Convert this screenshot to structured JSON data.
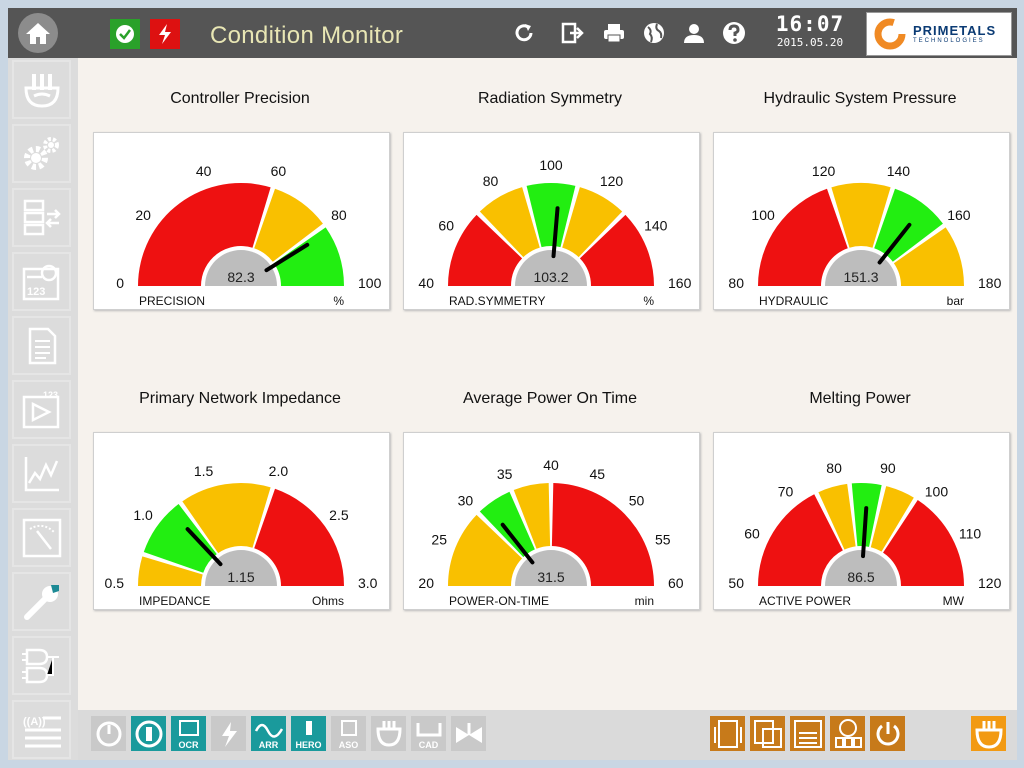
{
  "app": {
    "title": "Condition Monitor"
  },
  "clock": {
    "time": "16:07",
    "date": "2015.05.20"
  },
  "brand": {
    "name": "PRIMETALS",
    "sub": "TECHNOLOGIES"
  },
  "topbar_icons": [
    "refresh-icon",
    "logout-icon",
    "print-icon",
    "globe-icon",
    "user-icon",
    "help-icon"
  ],
  "sidebar": {
    "items": [
      {
        "icon": "furnace-icon",
        "color": "#6fa22e"
      },
      {
        "icon": "gears-icon",
        "color": "#c8761f"
      },
      {
        "icon": "transfer-list-icon",
        "color": "#2b73a8"
      },
      {
        "icon": "counter-123-icon",
        "color": "#7a5c2e"
      },
      {
        "icon": "document-icon",
        "color": "#1b9a77"
      },
      {
        "icon": "play-123-icon",
        "color": "#88a82a"
      },
      {
        "icon": "trend-chart-icon",
        "color": "#8b1e80"
      },
      {
        "icon": "meter-icon",
        "color": "#6b2e8c"
      },
      {
        "icon": "wrench-icon",
        "color": "#1d8a95"
      },
      {
        "icon": "logic-gates-icon",
        "color": "#9a1e1e"
      },
      {
        "icon": "alarm-list-icon",
        "color": "#8a2a12"
      }
    ]
  },
  "gauges": [
    {
      "title": "Controller Precision",
      "label": "PRECISION",
      "unit": "%",
      "min": 0,
      "max": 100,
      "value": 82.3,
      "display": "82.3",
      "ticks": [
        "0",
        "20",
        "40",
        "60",
        "80",
        "100"
      ],
      "segments": [
        {
          "from": 0,
          "to": 60,
          "color": "red"
        },
        {
          "from": 60,
          "to": 80,
          "color": "yellow"
        },
        {
          "from": 80,
          "to": 100,
          "color": "green"
        }
      ]
    },
    {
      "title": "Radiation Symmetry",
      "label": "RAD.SYMMETRY",
      "unit": "%",
      "min": 40,
      "max": 160,
      "value": 103.2,
      "display": "103.2",
      "ticks": [
        "40",
        "60",
        "80",
        "100",
        "120",
        "140",
        "160"
      ],
      "segments": [
        {
          "from": 40,
          "to": 70,
          "color": "red"
        },
        {
          "from": 70,
          "to": 90,
          "color": "yellow"
        },
        {
          "from": 90,
          "to": 110,
          "color": "green"
        },
        {
          "from": 110,
          "to": 130,
          "color": "yellow"
        },
        {
          "from": 130,
          "to": 160,
          "color": "red"
        }
      ]
    },
    {
      "title": "Hydraulic System Pressure",
      "label": "HYDRAULIC",
      "unit": "bar",
      "min": 80,
      "max": 180,
      "value": 151.3,
      "display": "151.3",
      "ticks": [
        "80",
        "100",
        "120",
        "140",
        "160",
        "180"
      ],
      "segments": [
        {
          "from": 80,
          "to": 120,
          "color": "red"
        },
        {
          "from": 120,
          "to": 140,
          "color": "yellow"
        },
        {
          "from": 140,
          "to": 160,
          "color": "green"
        },
        {
          "from": 160,
          "to": 180,
          "color": "yellow"
        }
      ]
    },
    {
      "title": "Primary Network Impedance",
      "label": "IMPEDANCE",
      "unit": "Ohms",
      "min": 0.5,
      "max": 3.0,
      "value": 1.15,
      "display": "1.15",
      "ticks": [
        "0.5",
        "1.0",
        "1.5",
        "2.0",
        "2.5",
        "3.0"
      ],
      "segments": [
        {
          "from": 0.5,
          "to": 0.75,
          "color": "yellow"
        },
        {
          "from": 0.75,
          "to": 1.25,
          "color": "green"
        },
        {
          "from": 1.25,
          "to": 2.0,
          "color": "yellow"
        },
        {
          "from": 2.0,
          "to": 3.0,
          "color": "red"
        }
      ]
    },
    {
      "title": "Average Power On Time",
      "label": "POWER-ON-TIME",
      "unit": "min",
      "min": 20,
      "max": 60,
      "value": 31.5,
      "display": "31.5",
      "ticks": [
        "20",
        "25",
        "30",
        "35",
        "40",
        "45",
        "50",
        "55",
        "60"
      ],
      "segments": [
        {
          "from": 20,
          "to": 30,
          "color": "yellow"
        },
        {
          "from": 30,
          "to": 35,
          "color": "green"
        },
        {
          "from": 35,
          "to": 40,
          "color": "yellow"
        },
        {
          "from": 40,
          "to": 60,
          "color": "red"
        }
      ]
    },
    {
      "title": "Melting Power",
      "label": "ACTIVE POWER",
      "unit": "MW",
      "min": 50,
      "max": 120,
      "value": 86.5,
      "display": "86.5",
      "ticks": [
        "50",
        "60",
        "70",
        "80",
        "90",
        "100",
        "110",
        "120"
      ],
      "segments": [
        {
          "from": 50,
          "to": 75,
          "color": "red"
        },
        {
          "from": 75,
          "to": 82.5,
          "color": "yellow"
        },
        {
          "from": 82.5,
          "to": 90,
          "color": "green"
        },
        {
          "from": 90,
          "to": 97.5,
          "color": "yellow"
        },
        {
          "from": 97.5,
          "to": 120,
          "color": "red"
        }
      ]
    }
  ],
  "colors": {
    "red": "#ee1111",
    "yellow": "#f9c000",
    "green": "#22ee11",
    "hub": "#bdbdbd",
    "needle": "#000000",
    "topbar": "#555555",
    "ok_badge": "#2aa12a",
    "power_badge": "#dd1111"
  },
  "bottombar": {
    "left_buttons": [
      {
        "icon": "power-cycle-icon",
        "label": "",
        "color": "#c9c9c9",
        "enabled": false
      },
      {
        "icon": "stop-icon",
        "label": "",
        "color": "#1a9a9c",
        "enabled": true
      },
      {
        "icon": "ocr-icon",
        "label": "OCR",
        "color": "#1a9a9c",
        "enabled": true
      },
      {
        "icon": "sc-icon",
        "label": "",
        "color": "#c9c9c9",
        "enabled": false
      },
      {
        "icon": "arr-icon",
        "label": "ARR",
        "color": "#1a9a9c",
        "enabled": true
      },
      {
        "icon": "hero-icon",
        "label": "HERO",
        "color": "#1a9a9c",
        "enabled": true
      },
      {
        "icon": "aso-icon",
        "label": "ASO",
        "color": "#c9c9c9",
        "enabled": false
      },
      {
        "icon": "burner-icon",
        "label": "",
        "color": "#c9c9c9",
        "enabled": false
      },
      {
        "icon": "cad-icon",
        "label": "CAD",
        "color": "#c9c9c9",
        "enabled": false
      },
      {
        "icon": "valve-icon",
        "label": "",
        "color": "#c9c9c9",
        "enabled": false
      }
    ],
    "right_buttons": [
      {
        "icon": "signal-list-icon",
        "label": "",
        "color": "#c77a1a"
      },
      {
        "icon": "database-icon",
        "label": "",
        "color": "#c77a1a"
      },
      {
        "icon": "variables-icon",
        "label": "",
        "color": "#c77a1a"
      },
      {
        "icon": "info-icon",
        "label": "",
        "color": "#c77a1a"
      },
      {
        "icon": "shutdown-icon",
        "label": "",
        "color": "#c77a1a"
      }
    ],
    "corner_button": {
      "icon": "furnace-icon",
      "color": "#f29a13"
    }
  }
}
